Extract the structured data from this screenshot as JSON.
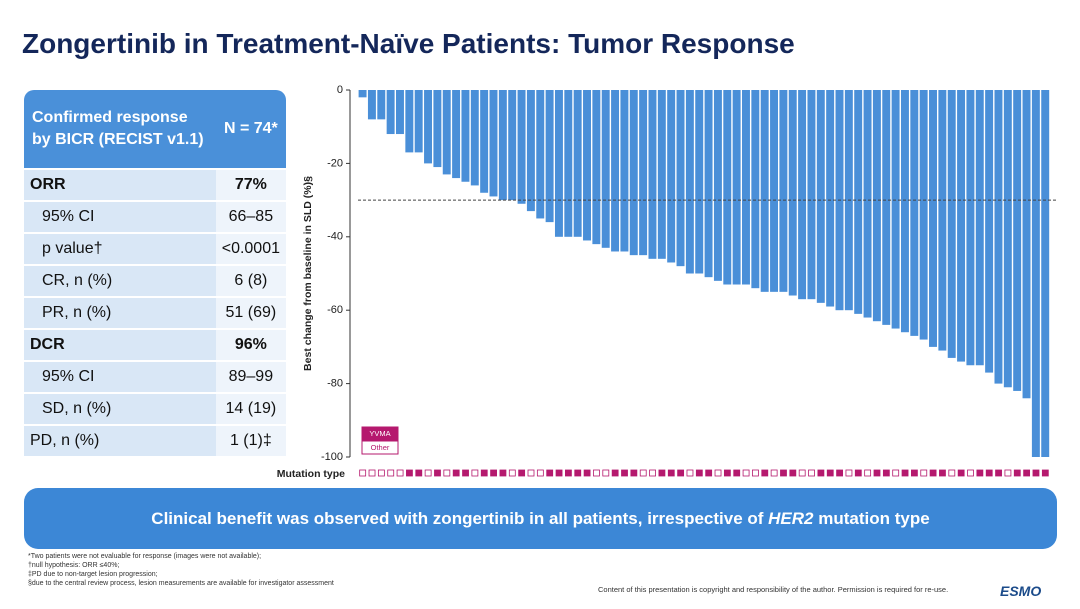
{
  "header": {
    "title": "Zongertinib in Treatment-Naïve Patients: Tumor Response"
  },
  "table": {
    "header": [
      "Confirmed response by BICR (RECIST v1.1)",
      "N = 74*"
    ],
    "rows": [
      {
        "cells": [
          "ORR",
          "77%"
        ],
        "bold": true
      },
      {
        "cells": [
          "95% CI",
          "66–85"
        ],
        "indent": true
      },
      {
        "cells": [
          "p value†",
          "<0.0001"
        ],
        "indent": true
      },
      {
        "cells": [
          "CR, n (%)",
          "6 (8)"
        ],
        "indent": true
      },
      {
        "cells": [
          "PR, n (%)",
          "51 (69)"
        ],
        "indent": true
      },
      {
        "cells": [
          "DCR",
          "96%"
        ],
        "bold": true
      },
      {
        "cells": [
          "95% CI",
          "89–99"
        ],
        "indent": true
      },
      {
        "cells": [
          "SD, n (%)",
          "14 (19)"
        ],
        "indent": true
      },
      {
        "cells": [
          "PD, n (%)",
          "1 (1)‡"
        ]
      }
    ]
  },
  "chart_data": {
    "type": "bar",
    "y_label": "Best change from baseline in SLD (%)§",
    "color": "#4a8fd8",
    "values": [
      -2,
      -8,
      -8,
      -12,
      -12,
      -17,
      -17,
      -20,
      -21,
      -23,
      -24,
      -25,
      -26,
      -28,
      -29,
      -30,
      -30,
      -31,
      -33,
      -35,
      -36,
      -40,
      -40,
      -40,
      -41,
      -42,
      -43,
      -44,
      -44,
      -45,
      -45,
      -46,
      -46,
      -47,
      -48,
      -50,
      -50,
      -51,
      -52,
      -53,
      -53,
      -53,
      -54,
      -55,
      -55,
      -55,
      -56,
      -57,
      -57,
      -58,
      -59,
      -60,
      -60,
      -61,
      -62,
      -63,
      -64,
      -65,
      -66,
      -67,
      -68,
      -70,
      -71,
      -73,
      -74,
      -75,
      -75,
      -77,
      -80,
      -81,
      -82,
      -84,
      -100,
      -100
    ],
    "ylim": [
      -100,
      0
    ],
    "yticks": [
      0,
      -20,
      -40,
      -60,
      -80,
      -100
    ],
    "reference_line": -30,
    "mutation_type": {
      "label": "Mutation type",
      "legend": [
        "YVMA",
        "Other"
      ],
      "color": "#b5196e",
      "values": [
        "Other",
        "Other",
        "Other",
        "Other",
        "Other",
        "YVMA",
        "YVMA",
        "Other",
        "YVMA",
        "Other",
        "YVMA",
        "YVMA",
        "Other",
        "YVMA",
        "YVMA",
        "YVMA",
        "Other",
        "YVMA",
        "Other",
        "Other",
        "YVMA",
        "YVMA",
        "YVMA",
        "YVMA",
        "YVMA",
        "Other",
        "Other",
        "YVMA",
        "YVMA",
        "YVMA",
        "Other",
        "Other",
        "YVMA",
        "YVMA",
        "YVMA",
        "Other",
        "YVMA",
        "YVMA",
        "Other",
        "YVMA",
        "YVMA",
        "Other",
        "Other",
        "YVMA",
        "Other",
        "YVMA",
        "YVMA",
        "Other",
        "Other",
        "YVMA",
        "YVMA",
        "YVMA",
        "Other",
        "YVMA",
        "Other",
        "YVMA",
        "YVMA",
        "Other",
        "YVMA",
        "YVMA",
        "Other",
        "YVMA",
        "YVMA",
        "Other",
        "YVMA",
        "Other",
        "YVMA",
        "YVMA",
        "YVMA",
        "Other",
        "YVMA",
        "YVMA",
        "YVMA",
        "YVMA"
      ]
    }
  },
  "banner": {
    "before": "Clinical benefit was observed with zongertinib in all patients, irrespective of ",
    "italic": "HER2",
    "after": " mutation type"
  },
  "footnotes": [
    "*Two patients were not evaluable for response (images were not available);",
    "†null hypothesis: ORR ≤40%;",
    "‡PD due to non-target lesion progression;",
    "§due to the central review process, lesion measurements are available for investigator assessment"
  ],
  "copyright": "Content of this presentation is copyright and responsibility of the author. Permission is required for re-use.",
  "logo": "ESMO"
}
